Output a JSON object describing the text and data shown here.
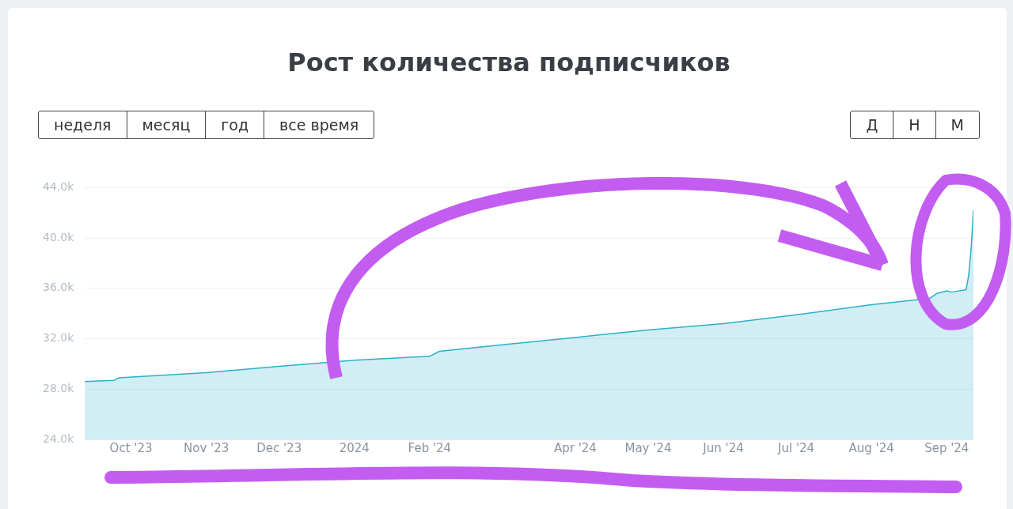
{
  "chart_data": {
    "type": "area",
    "title": "Рост количества подписчиков",
    "annotations": [
      "неделя",
      "месяц",
      "год",
      "все время",
      "Д",
      "Н",
      "М"
    ],
    "x": [
      "2023-09-12",
      "2023-09-24",
      "2023-09-26",
      "2023-11-01",
      "2023-12-01",
      "2024-01-01",
      "2024-02-01",
      "2024-02-05",
      "2024-03-01",
      "2024-04-01",
      "2024-05-01",
      "2024-06-01",
      "2024-07-01",
      "2024-08-01",
      "2024-08-25",
      "2024-08-28",
      "2024-09-01",
      "2024-09-03",
      "2024-09-09",
      "2024-09-10",
      "2024-09-11",
      "2024-09-12"
    ],
    "series": [
      {
        "color": "#2bb0c8",
        "values": [
          28.6,
          28.7,
          28.9,
          29.3,
          29.8,
          30.3,
          30.6,
          31.0,
          31.5,
          32.1,
          32.7,
          33.2,
          33.9,
          34.7,
          35.2,
          35.6,
          35.8,
          35.7,
          35.9,
          37.0,
          39.0,
          42.2
        ]
      }
    ],
    "xlim": [
      "2023-09-12",
      "2024-09-12"
    ],
    "xticks": [
      {
        "value": "2023-10-01",
        "label": "Oct '23"
      },
      {
        "value": "2023-11-01",
        "label": "Nov '23"
      },
      {
        "value": "2023-12-01",
        "label": "Dec '23"
      },
      {
        "value": "2024-01-01",
        "label": "2024"
      },
      {
        "value": "2024-02-01",
        "label": "Feb '24"
      },
      {
        "value": "2024-04-01",
        "label": "Apr '24"
      },
      {
        "value": "2024-05-01",
        "label": "May '24"
      },
      {
        "value": "2024-06-01",
        "label": "Jun '24"
      },
      {
        "value": "2024-07-01",
        "label": "Jul '24"
      },
      {
        "value": "2024-08-01",
        "label": "Aug '24"
      },
      {
        "value": "2024-09-01",
        "label": "Sep '24"
      }
    ],
    "ylim": [
      24,
      44
    ],
    "yticks": [
      {
        "value": 24,
        "label": "24.0k"
      },
      {
        "value": 28,
        "label": "28.0k"
      },
      {
        "value": 32,
        "label": "32.0k"
      },
      {
        "value": 36,
        "label": "36.0k"
      },
      {
        "value": 40,
        "label": "40.0k"
      },
      {
        "value": 44,
        "label": "44.0k"
      }
    ],
    "grid": "y",
    "legend": false,
    "marker": "none",
    "line_style": "solid"
  }
}
